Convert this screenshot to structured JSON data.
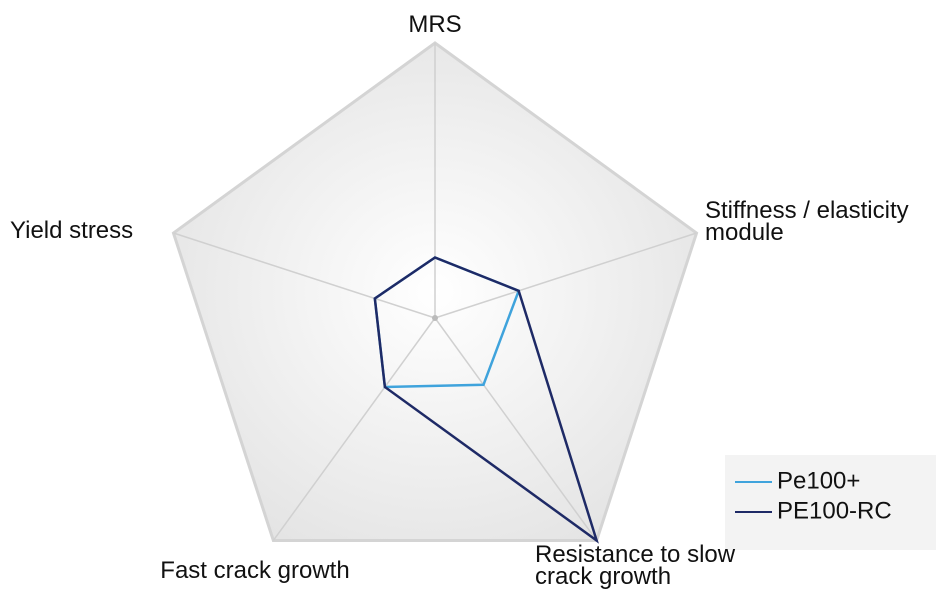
{
  "chart_data": {
    "type": "radar",
    "categories": [
      "MRS",
      "Stiffness / elasticity module",
      "Resistance to slow crack growth",
      "Fast crack growth",
      "Yield stress"
    ],
    "rlim": [
      0,
      1
    ],
    "series": [
      {
        "name": "Pe100+",
        "color": "#3fa3dc",
        "values": [
          0.22,
          0.32,
          0.3,
          0.31,
          0.23
        ]
      },
      {
        "name": "PE100-RC",
        "color": "#1e2a66",
        "values": [
          0.22,
          0.32,
          1.0,
          0.31,
          0.23
        ]
      }
    ],
    "legend": "lower right"
  }
}
